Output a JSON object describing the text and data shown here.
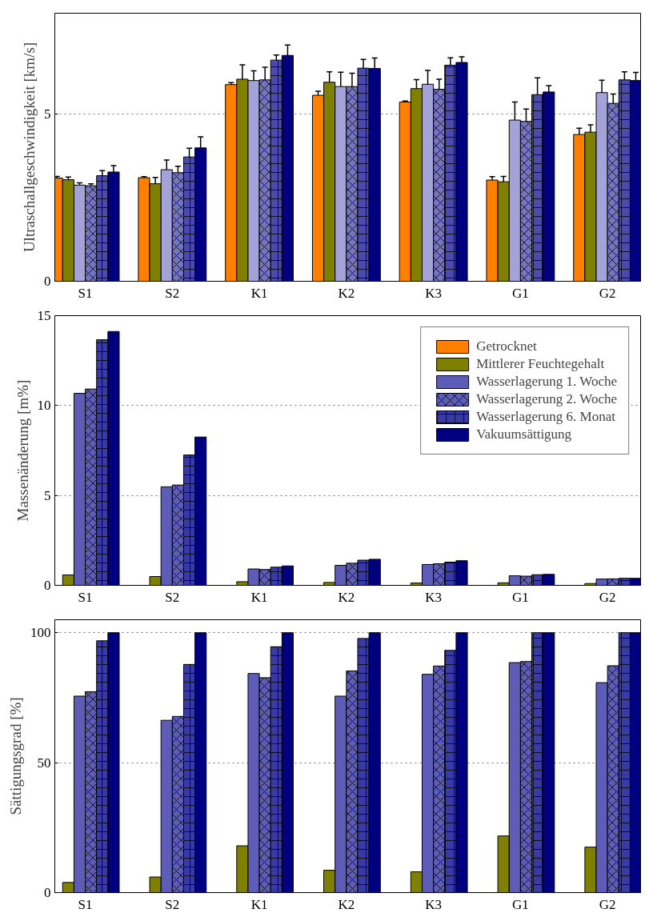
{
  "chart_data": [
    {
      "type": "bar",
      "ylabel": "Ultraschallgeschwindigkeit [km/s]",
      "categories": [
        "S1",
        "S2",
        "K1",
        "K2",
        "K3",
        "G1",
        "G2"
      ],
      "ylim": [
        0,
        8
      ],
      "yticks": [
        0,
        5
      ],
      "grid": "y",
      "legend": false,
      "series": [
        {
          "color": "#ff8000",
          "values": [
            3.08,
            3.09,
            5.87,
            5.55,
            5.35,
            3.02,
            4.38
          ],
          "errors": [
            0.05,
            0.03,
            0.06,
            0.12,
            0.03,
            0.1,
            0.19
          ]
        },
        {
          "color": "#808000",
          "values": [
            3.03,
            2.91,
            6.03,
            5.94,
            5.75,
            2.97,
            4.45
          ],
          "errors": [
            0.08,
            0.19,
            0.43,
            0.31,
            0.27,
            0.16,
            0.22
          ]
        },
        {
          "color": "#a3a3d9",
          "values": [
            2.87,
            3.33,
            5.99,
            5.81,
            5.88,
            4.81,
            5.63
          ],
          "errors": [
            0.07,
            0.29,
            0.29,
            0.43,
            0.41,
            0.54,
            0.37
          ]
        },
        {
          "color": "#7474c0",
          "values": [
            2.85,
            3.24,
            6.01,
            5.81,
            5.73,
            4.77,
            5.31
          ],
          "errors": [
            0.06,
            0.19,
            0.38,
            0.4,
            0.3,
            0.37,
            0.28
          ]
        },
        {
          "color": "#4b4bad",
          "values": [
            3.15,
            3.71,
            6.6,
            6.36,
            6.45,
            5.57,
            6.01
          ],
          "errors": [
            0.15,
            0.26,
            0.15,
            0.26,
            0.22,
            0.5,
            0.24
          ]
        },
        {
          "color": "#000080",
          "values": [
            3.26,
            3.98,
            6.74,
            6.35,
            6.53,
            5.65,
            5.99
          ],
          "errors": [
            0.19,
            0.33,
            0.31,
            0.31,
            0.17,
            0.19,
            0.24
          ]
        }
      ]
    },
    {
      "type": "bar",
      "ylabel": "Massenänderung [m%]",
      "categories": [
        "S1",
        "S2",
        "K1",
        "K2",
        "K3",
        "G1",
        "G2"
      ],
      "ylim": [
        0,
        15
      ],
      "yticks": [
        0,
        5,
        10,
        15
      ],
      "grid": "y",
      "legend": "top right",
      "series": [
        {
          "name": "Getrocknet",
          "color": "#ff8000",
          "values": [
            null,
            null,
            null,
            null,
            null,
            null,
            null
          ]
        },
        {
          "name": "Mittlerer Feuchtegehalt",
          "color": "#808000",
          "values": [
            0.58,
            0.49,
            0.2,
            0.16,
            0.13,
            0.14,
            0.1
          ]
        },
        {
          "name": "Wasserlagerung 1. Woche",
          "color": "#5d5db8",
          "values": [
            10.68,
            5.48,
            0.91,
            1.11,
            1.16,
            0.53,
            0.35
          ]
        },
        {
          "name": "Wasserlagerung 2. Woche",
          "color": "#5d5db8",
          "values": [
            10.92,
            5.58,
            0.88,
            1.23,
            1.2,
            0.51,
            0.36
          ]
        },
        {
          "name": "Wasserlagerung 6. Monat",
          "color": "#3a3aa6",
          "values": [
            13.66,
            7.25,
            1.01,
            1.4,
            1.29,
            0.59,
            0.39
          ]
        },
        {
          "name": "Vakuumsättigung",
          "color": "#000080",
          "values": [
            14.12,
            8.25,
            1.08,
            1.45,
            1.37,
            0.61,
            0.39
          ]
        }
      ]
    },
    {
      "type": "bar",
      "ylabel": "Sättigungsgrad [%]",
      "categories": [
        "S1",
        "S2",
        "K1",
        "K2",
        "K3",
        "G1",
        "G2"
      ],
      "ylim": [
        0,
        105
      ],
      "yticks": [
        0,
        50,
        100
      ],
      "grid": "y",
      "legend": false,
      "series": [
        {
          "color": "#ff8000",
          "values": [
            null,
            null,
            null,
            null,
            null,
            null,
            null
          ]
        },
        {
          "color": "#808000",
          "values": [
            3.9,
            6.0,
            18.0,
            8.6,
            8.0,
            21.8,
            17.5
          ]
        },
        {
          "color": "#5d5db8",
          "values": [
            75.6,
            66.3,
            84.3,
            75.6,
            84.0,
            88.5,
            80.8
          ]
        },
        {
          "color": "#5d5db8",
          "values": [
            77.3,
            67.8,
            82.7,
            85.3,
            87.2,
            88.9,
            87.3
          ]
        },
        {
          "color": "#3a3aa6",
          "values": [
            96.9,
            87.8,
            94.6,
            97.8,
            93.2,
            100,
            100
          ]
        },
        {
          "color": "#000080",
          "values": [
            100,
            100,
            100,
            100,
            100,
            100,
            100
          ]
        }
      ]
    }
  ]
}
